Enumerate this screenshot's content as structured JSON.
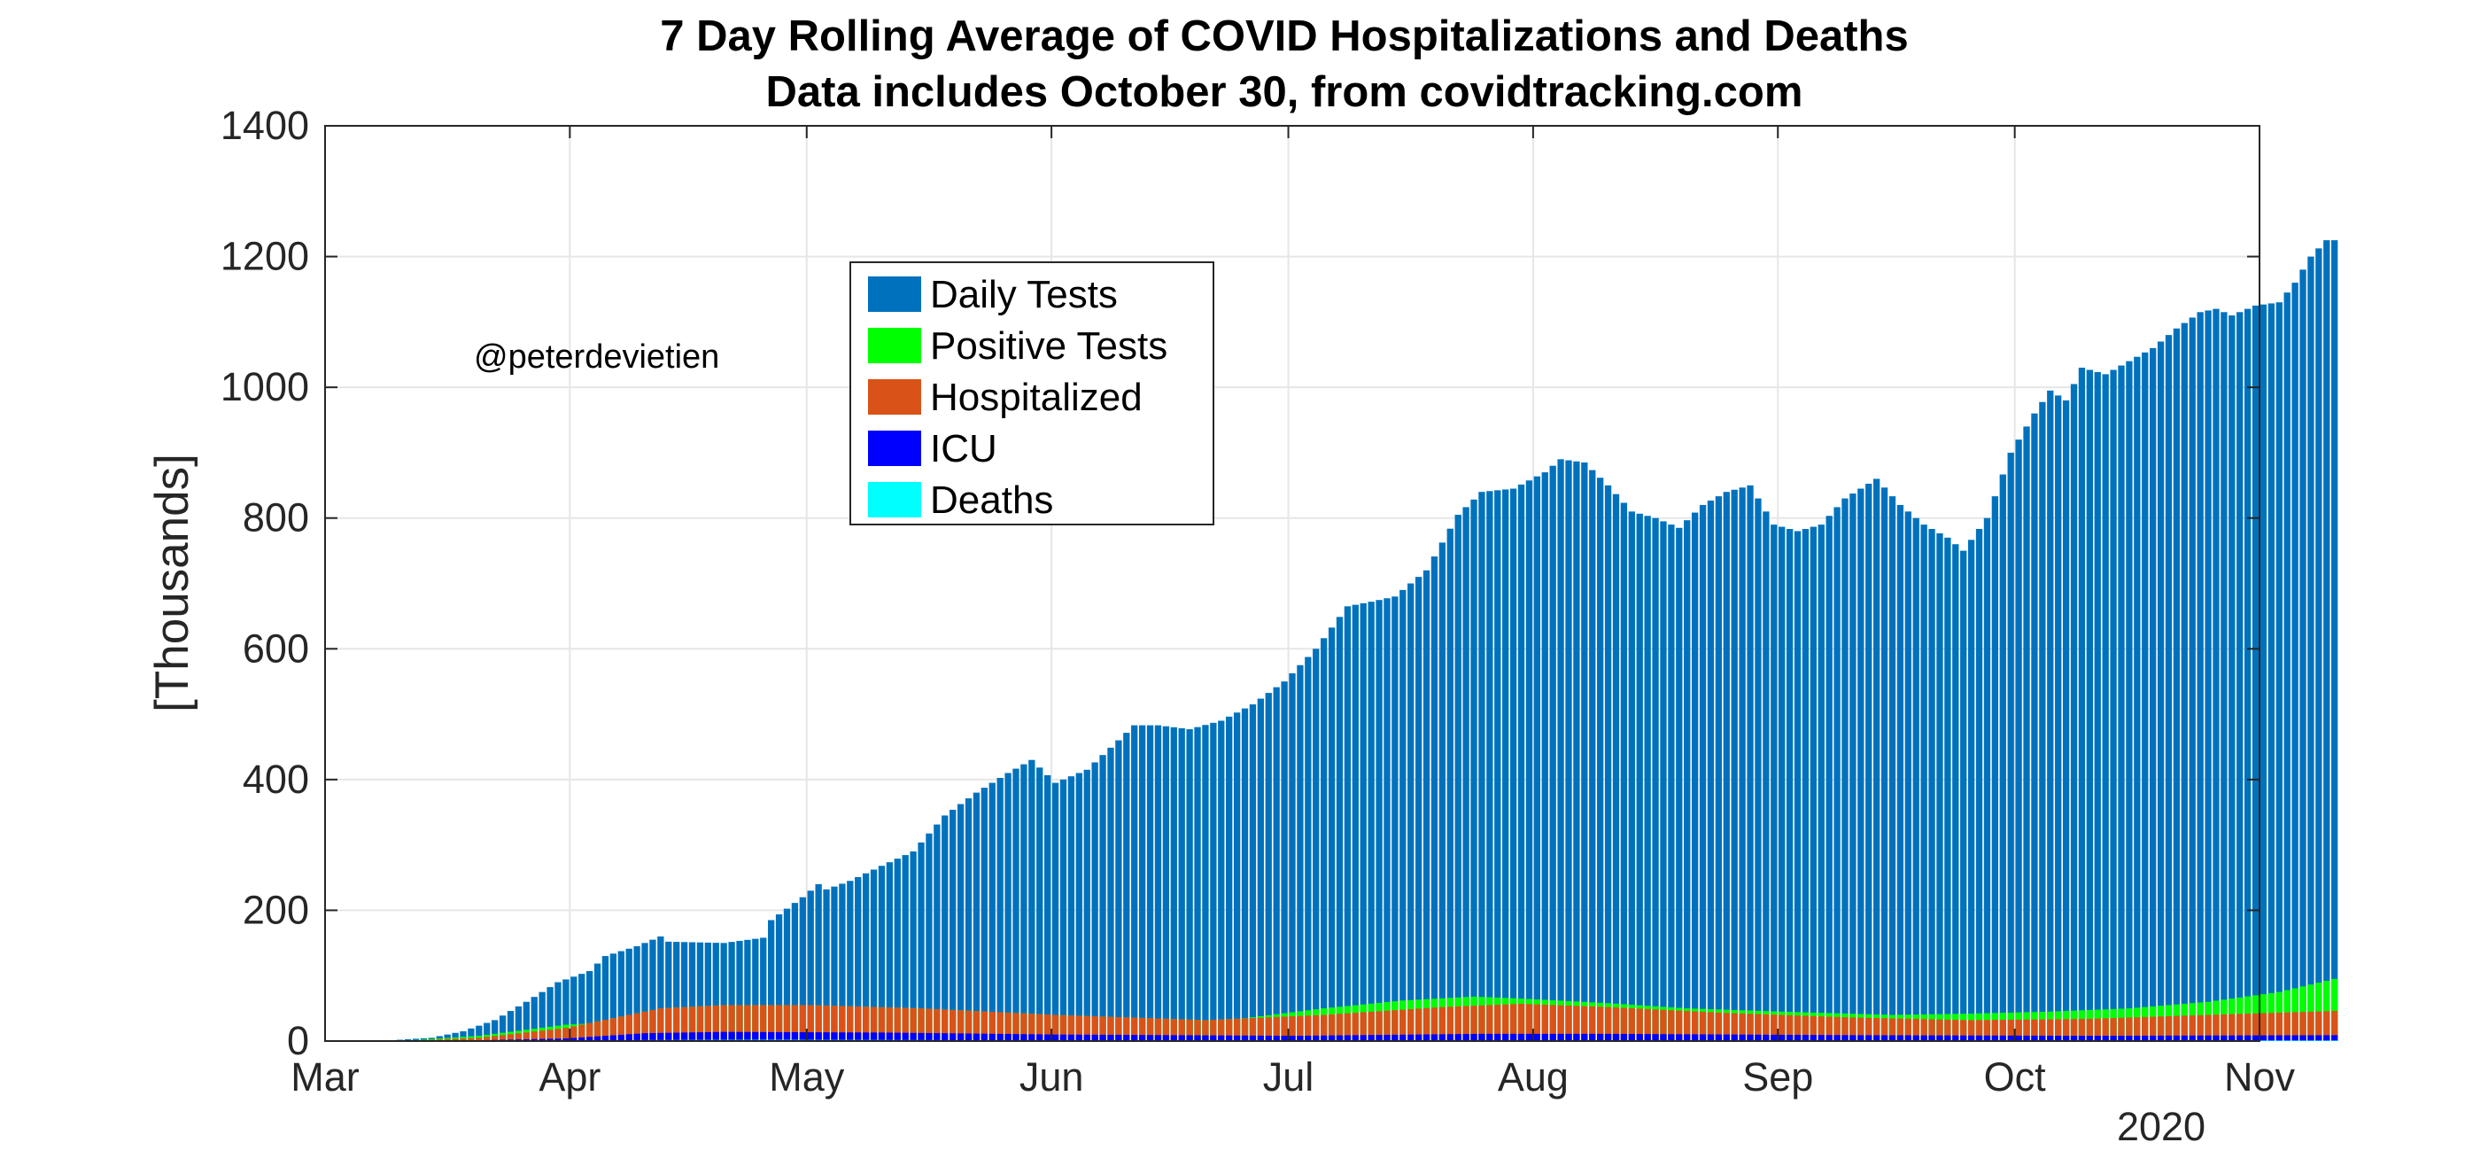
{
  "chart_data": {
    "type": "bar",
    "stacked": true,
    "title": [
      "7 Day Rolling Average of COVID Hospitalizations and Deaths",
      "Data includes October 30, from covidtracking.com"
    ],
    "ylabel": "[Thousands]",
    "xlabel": "",
    "ylim": [
      0,
      1400
    ],
    "yticks": [
      0,
      200,
      400,
      600,
      800,
      1000,
      1200,
      1400
    ],
    "xticklabels": [
      "Mar",
      "Apr",
      "May",
      "Jun",
      "Jul",
      "Aug",
      "Sep",
      "Oct",
      "Nov"
    ],
    "x_secondary_label": "2020",
    "x_start": "2020-03-01",
    "x_end": "2020-11-01",
    "first_bar_date": "2020-03-01",
    "grid": true,
    "legend_position": "top-center",
    "annotation": "@peterdevietien",
    "colors": {
      "daily_tests": "#0072BD",
      "positive_tests": "#00FF00",
      "hospitalized": "#D95319",
      "icu": "#0000FF",
      "deaths": "#00FFFF"
    },
    "series": [
      {
        "name": "Daily Tests",
        "key": "daily_tests",
        "anchors": [
          [
            "2020-03-01",
            0
          ],
          [
            "2020-03-07",
            0
          ],
          [
            "2020-03-10",
            2
          ],
          [
            "2020-03-14",
            5
          ],
          [
            "2020-03-18",
            15
          ],
          [
            "2020-03-22",
            32
          ],
          [
            "2020-03-26",
            60
          ],
          [
            "2020-03-30",
            90
          ],
          [
            "2020-04-03",
            107
          ],
          [
            "2020-04-05",
            130
          ],
          [
            "2020-04-09",
            145
          ],
          [
            "2020-04-12",
            160
          ],
          [
            "2020-04-13",
            152
          ],
          [
            "2020-04-20",
            150
          ],
          [
            "2020-04-25",
            158
          ],
          [
            "2020-04-26",
            185
          ],
          [
            "2020-04-30",
            220
          ],
          [
            "2020-05-02",
            240
          ],
          [
            "2020-05-03",
            232
          ],
          [
            "2020-05-06",
            245
          ],
          [
            "2020-05-10",
            268
          ],
          [
            "2020-05-14",
            290
          ],
          [
            "2020-05-18",
            345
          ],
          [
            "2020-05-22",
            380
          ],
          [
            "2020-05-26",
            410
          ],
          [
            "2020-05-29",
            430
          ],
          [
            "2020-06-01",
            395
          ],
          [
            "2020-06-03",
            405
          ],
          [
            "2020-06-05",
            415
          ],
          [
            "2020-06-09",
            460
          ],
          [
            "2020-06-11",
            483
          ],
          [
            "2020-06-14",
            483
          ],
          [
            "2020-06-18",
            477
          ],
          [
            "2020-06-22",
            490
          ],
          [
            "2020-06-26",
            515
          ],
          [
            "2020-06-30",
            550
          ],
          [
            "2020-07-04",
            600
          ],
          [
            "2020-07-08",
            665
          ],
          [
            "2020-07-11",
            672
          ],
          [
            "2020-07-14",
            680
          ],
          [
            "2020-07-18",
            720
          ],
          [
            "2020-07-22",
            805
          ],
          [
            "2020-07-25",
            840
          ],
          [
            "2020-07-29",
            845
          ],
          [
            "2020-08-02",
            870
          ],
          [
            "2020-08-04",
            890
          ],
          [
            "2020-08-07",
            885
          ],
          [
            "2020-08-10",
            850
          ],
          [
            "2020-08-13",
            810
          ],
          [
            "2020-08-16",
            800
          ],
          [
            "2020-08-19",
            785
          ],
          [
            "2020-08-22",
            820
          ],
          [
            "2020-08-25",
            840
          ],
          [
            "2020-08-28",
            850
          ],
          [
            "2020-08-31",
            790
          ],
          [
            "2020-09-03",
            780
          ],
          [
            "2020-09-06",
            790
          ],
          [
            "2020-09-09",
            830
          ],
          [
            "2020-09-13",
            860
          ],
          [
            "2020-09-16",
            820
          ],
          [
            "2020-09-19",
            790
          ],
          [
            "2020-09-22",
            770
          ],
          [
            "2020-09-24",
            750
          ],
          [
            "2020-09-27",
            800
          ],
          [
            "2020-09-30",
            900
          ],
          [
            "2020-10-03",
            960
          ],
          [
            "2020-10-05",
            995
          ],
          [
            "2020-10-07",
            980
          ],
          [
            "2020-10-09",
            1030
          ],
          [
            "2020-10-12",
            1020
          ],
          [
            "2020-10-15",
            1040
          ],
          [
            "2020-10-18",
            1060
          ],
          [
            "2020-10-21",
            1090
          ],
          [
            "2020-10-24",
            1115
          ],
          [
            "2020-10-26",
            1120
          ],
          [
            "2020-10-28",
            1110
          ],
          [
            "2020-10-31",
            1125
          ],
          [
            "2020-11-03",
            1130
          ],
          [
            "2020-11-05",
            1160
          ],
          [
            "2020-11-07",
            1200
          ],
          [
            "2020-11-09",
            1225
          ],
          [
            "2020-11-10",
            1225
          ]
        ]
      },
      {
        "name": "Positive Tests",
        "key": "positive_tests",
        "anchors": [
          [
            "2020-03-01",
            0
          ],
          [
            "2020-03-10",
            0
          ],
          [
            "2020-03-20",
            8
          ],
          [
            "2020-03-31",
            25
          ],
          [
            "2020-04-10",
            31
          ],
          [
            "2020-04-20",
            30
          ],
          [
            "2020-05-01",
            28
          ],
          [
            "2020-05-15",
            25
          ],
          [
            "2020-06-01",
            22
          ],
          [
            "2020-06-15",
            25
          ],
          [
            "2020-06-25",
            35
          ],
          [
            "2020-07-05",
            50
          ],
          [
            "2020-07-15",
            62
          ],
          [
            "2020-07-24",
            68
          ],
          [
            "2020-07-30",
            65
          ],
          [
            "2020-08-10",
            58
          ],
          [
            "2020-08-20",
            50
          ],
          [
            "2020-09-01",
            45
          ],
          [
            "2020-09-15",
            40
          ],
          [
            "2020-09-25",
            42
          ],
          [
            "2020-10-05",
            45
          ],
          [
            "2020-10-15",
            50
          ],
          [
            "2020-10-25",
            60
          ],
          [
            "2020-11-03",
            75
          ],
          [
            "2020-11-10",
            95
          ]
        ]
      },
      {
        "name": "Hospitalized",
        "key": "hospitalized",
        "anchors": [
          [
            "2020-03-01",
            0
          ],
          [
            "2020-03-10",
            0
          ],
          [
            "2020-03-20",
            5
          ],
          [
            "2020-03-31",
            20
          ],
          [
            "2020-04-06",
            35
          ],
          [
            "2020-04-12",
            50
          ],
          [
            "2020-04-20",
            55
          ],
          [
            "2020-05-01",
            55
          ],
          [
            "2020-05-15",
            50
          ],
          [
            "2020-06-01",
            40
          ],
          [
            "2020-06-20",
            32
          ],
          [
            "2020-07-05",
            40
          ],
          [
            "2020-07-20",
            52
          ],
          [
            "2020-07-30",
            57
          ],
          [
            "2020-08-10",
            52
          ],
          [
            "2020-08-25",
            43
          ],
          [
            "2020-09-10",
            36
          ],
          [
            "2020-09-25",
            32
          ],
          [
            "2020-10-10",
            34
          ],
          [
            "2020-10-25",
            40
          ],
          [
            "2020-11-10",
            46
          ]
        ]
      },
      {
        "name": "ICU",
        "key": "icu",
        "anchors": [
          [
            "2020-03-01",
            0
          ],
          [
            "2020-03-15",
            0
          ],
          [
            "2020-03-31",
            4
          ],
          [
            "2020-04-10",
            12
          ],
          [
            "2020-04-20",
            14
          ],
          [
            "2020-05-10",
            13
          ],
          [
            "2020-06-01",
            10
          ],
          [
            "2020-07-01",
            8
          ],
          [
            "2020-07-25",
            11
          ],
          [
            "2020-08-10",
            11
          ],
          [
            "2020-09-10",
            9
          ],
          [
            "2020-10-10",
            8
          ],
          [
            "2020-11-10",
            9
          ]
        ]
      },
      {
        "name": "Deaths",
        "key": "deaths",
        "anchors": [
          [
            "2020-03-01",
            0
          ],
          [
            "2020-03-20",
            0
          ],
          [
            "2020-04-10",
            1.5
          ],
          [
            "2020-04-25",
            2
          ],
          [
            "2020-05-15",
            1.5
          ],
          [
            "2020-06-15",
            0.7
          ],
          [
            "2020-07-25",
            1
          ],
          [
            "2020-08-15",
            1
          ],
          [
            "2020-09-15",
            0.8
          ],
          [
            "2020-10-15",
            0.8
          ],
          [
            "2020-11-10",
            0.9
          ]
        ]
      }
    ]
  }
}
